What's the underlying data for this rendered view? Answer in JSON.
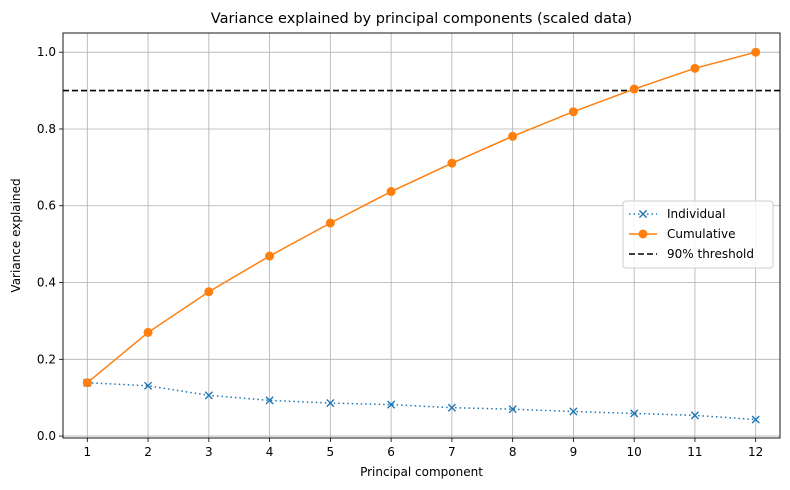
{
  "chart_data": {
    "type": "line",
    "title": "Variance explained by principal components (scaled data)",
    "xlabel": "Principal component",
    "ylabel": "Variance explained",
    "x": [
      1,
      2,
      3,
      4,
      5,
      6,
      7,
      8,
      9,
      10,
      11,
      12
    ],
    "xlim": [
      0.6,
      12.4
    ],
    "ylim": [
      -0.005,
      1.05
    ],
    "yticks": [
      0.0,
      0.2,
      0.4,
      0.6,
      0.8,
      1.0
    ],
    "ytick_labels": [
      "0.0",
      "0.2",
      "0.4",
      "0.6",
      "0.8",
      "1.0"
    ],
    "grid": true,
    "legend_position": "center-right",
    "series": [
      {
        "name": "Individual",
        "color": "#1f77b4",
        "line_style": "dotted",
        "marker": "x",
        "values": [
          0.139,
          0.131,
          0.106,
          0.093,
          0.086,
          0.082,
          0.074,
          0.07,
          0.064,
          0.059,
          0.054,
          0.043
        ]
      },
      {
        "name": "Cumulative",
        "color": "#ff7f0e",
        "line_style": "solid",
        "marker": "circle",
        "values": [
          0.139,
          0.27,
          0.376,
          0.469,
          0.555,
          0.637,
          0.711,
          0.781,
          0.845,
          0.904,
          0.958,
          1.0
        ]
      }
    ],
    "reference_lines": [
      {
        "name": "90% threshold",
        "y": 0.9,
        "color": "#000000",
        "line_style": "dashed"
      }
    ]
  }
}
